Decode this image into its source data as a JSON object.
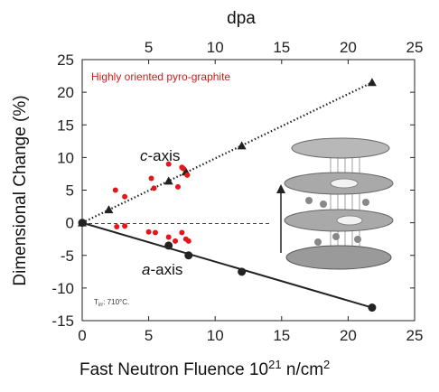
{
  "chart_data": {
    "type": "scatter",
    "title": "",
    "xlabel": "Fast Neutron Fluence 10",
    "xlabel_sup": "21",
    "xlabel_unit": " n/cm",
    "xlabel_unit_sup": "2",
    "x2label": "dpa",
    "ylabel": "Dimensional Change (%)",
    "xlim": [
      0,
      25
    ],
    "ylim": [
      -15,
      25
    ],
    "x2lim": [
      0,
      25
    ],
    "xticks": [
      0,
      5,
      10,
      15,
      20,
      25
    ],
    "x2ticks": [
      5,
      10,
      15,
      20,
      25
    ],
    "yticks": [
      -15,
      -10,
      -5,
      0,
      5,
      10,
      15,
      20,
      25
    ],
    "grid": false,
    "annotations": {
      "material": "Highly oriented pyro-graphite",
      "c_axis_prefix": "c",
      "c_axis_suffix": "-axis",
      "a_axis_prefix": "a",
      "a_axis_suffix": "-axis",
      "temp_sub": "irr",
      "temp_value": ": 710°C."
    },
    "series": [
      {
        "name": "c-axis",
        "marker": "triangle",
        "line": "dotted",
        "color": "#222222",
        "x": [
          0,
          2,
          6.5,
          7.8,
          12,
          21.8
        ],
        "y": [
          0,
          2,
          6.4,
          7.8,
          11.8,
          21.5
        ]
      },
      {
        "name": "a-axis",
        "marker": "circle",
        "line": "solid",
        "color": "#222222",
        "x": [
          0,
          6.5,
          8,
          12,
          21.8
        ],
        "y": [
          0,
          -3.5,
          -5,
          -7.5,
          -13
        ]
      },
      {
        "name": "c-axis (red data)",
        "marker": "circle",
        "line": "none",
        "color": "#e3161b",
        "x": [
          2.5,
          3.2,
          5.2,
          5.4,
          6.5,
          7.2,
          7.6,
          7.9,
          7.5
        ],
        "y": [
          5,
          4,
          6.8,
          5.3,
          9,
          5.5,
          8.3,
          7.3,
          8.5
        ]
      },
      {
        "name": "a-axis (red data)",
        "marker": "circle",
        "line": "none",
        "color": "#e3161b",
        "x": [
          2.6,
          3.2,
          5.0,
          5.5,
          6.5,
          7.0,
          7.5,
          7.8,
          8.0
        ],
        "y": [
          -0.6,
          -0.5,
          -1.4,
          -1.5,
          -2.2,
          -2.8,
          -1.5,
          -2.5,
          -2.8
        ]
      }
    ]
  }
}
